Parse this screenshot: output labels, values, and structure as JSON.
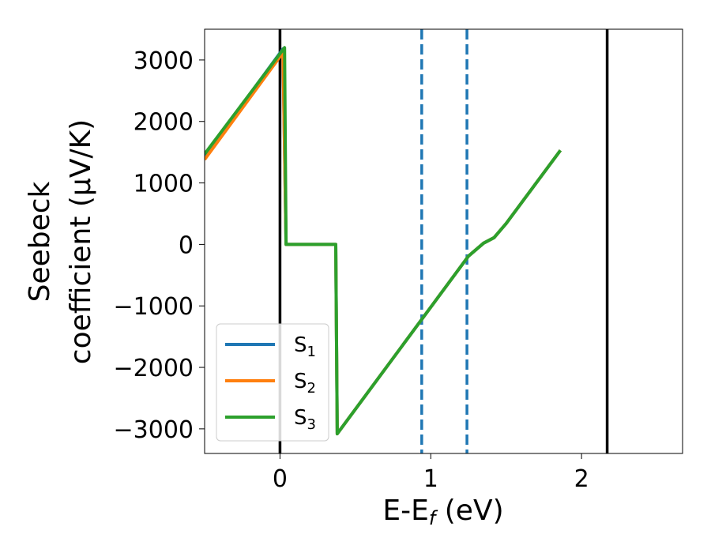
{
  "chart_data": {
    "type": "line",
    "xlabel": "E-E_f (eV)",
    "xlabel_parts": {
      "main": "E-E",
      "sub": "f",
      "tail": " (eV)"
    },
    "ylabel_line1": "Seebeck",
    "ylabel_line2": "coefficient  (μV/K)",
    "xlim": [
      -0.5,
      2.67
    ],
    "ylim": [
      -3400,
      3500
    ],
    "xticks": [
      0,
      1,
      2
    ],
    "xtick_labels": [
      "0",
      "1",
      "2"
    ],
    "yticks": [
      -3000,
      -2000,
      -1000,
      0,
      1000,
      2000,
      3000
    ],
    "ytick_labels": [
      "−3000",
      "−2000",
      "−1000",
      "0",
      "1000",
      "2000",
      "3000"
    ],
    "legend_position": "lower-left",
    "grid": false,
    "series": [
      {
        "name": "S_1",
        "label_main": "S",
        "label_sub": "1",
        "color": "#1f77b4",
        "x": [
          -0.5,
          0.02,
          0.04,
          0.37,
          0.38,
          1.25,
          1.35,
          1.42,
          1.5,
          1.86
        ],
        "y": [
          1440,
          3180,
          0,
          0,
          -3080,
          -190,
          20,
          110,
          340,
          1530
        ]
      },
      {
        "name": "S_2",
        "label_main": "S",
        "label_sub": "2",
        "color": "#ff7f0e",
        "x": [
          -0.5,
          0.02,
          0.04,
          0.37,
          0.38,
          1.25,
          1.35,
          1.42,
          1.5,
          1.86
        ],
        "y": [
          1380,
          3120,
          0,
          0,
          -3080,
          -190,
          20,
          110,
          340,
          1530
        ]
      },
      {
        "name": "S_3",
        "label_main": "S",
        "label_sub": "3",
        "color": "#2ca02c",
        "x": [
          -0.5,
          0.03,
          0.04,
          0.37,
          0.38,
          1.25,
          1.35,
          1.42,
          1.5,
          1.86
        ],
        "y": [
          1470,
          3200,
          0,
          0,
          -3080,
          -190,
          20,
          110,
          340,
          1530
        ]
      }
    ],
    "vlines": [
      {
        "x": 0.0,
        "color": "#000000",
        "style": "solid"
      },
      {
        "x": 2.17,
        "color": "#000000",
        "style": "solid"
      },
      {
        "x": 0.94,
        "color": "#1f77b4",
        "style": "dashed"
      },
      {
        "x": 1.24,
        "color": "#1f77b4",
        "style": "dashed"
      }
    ]
  }
}
